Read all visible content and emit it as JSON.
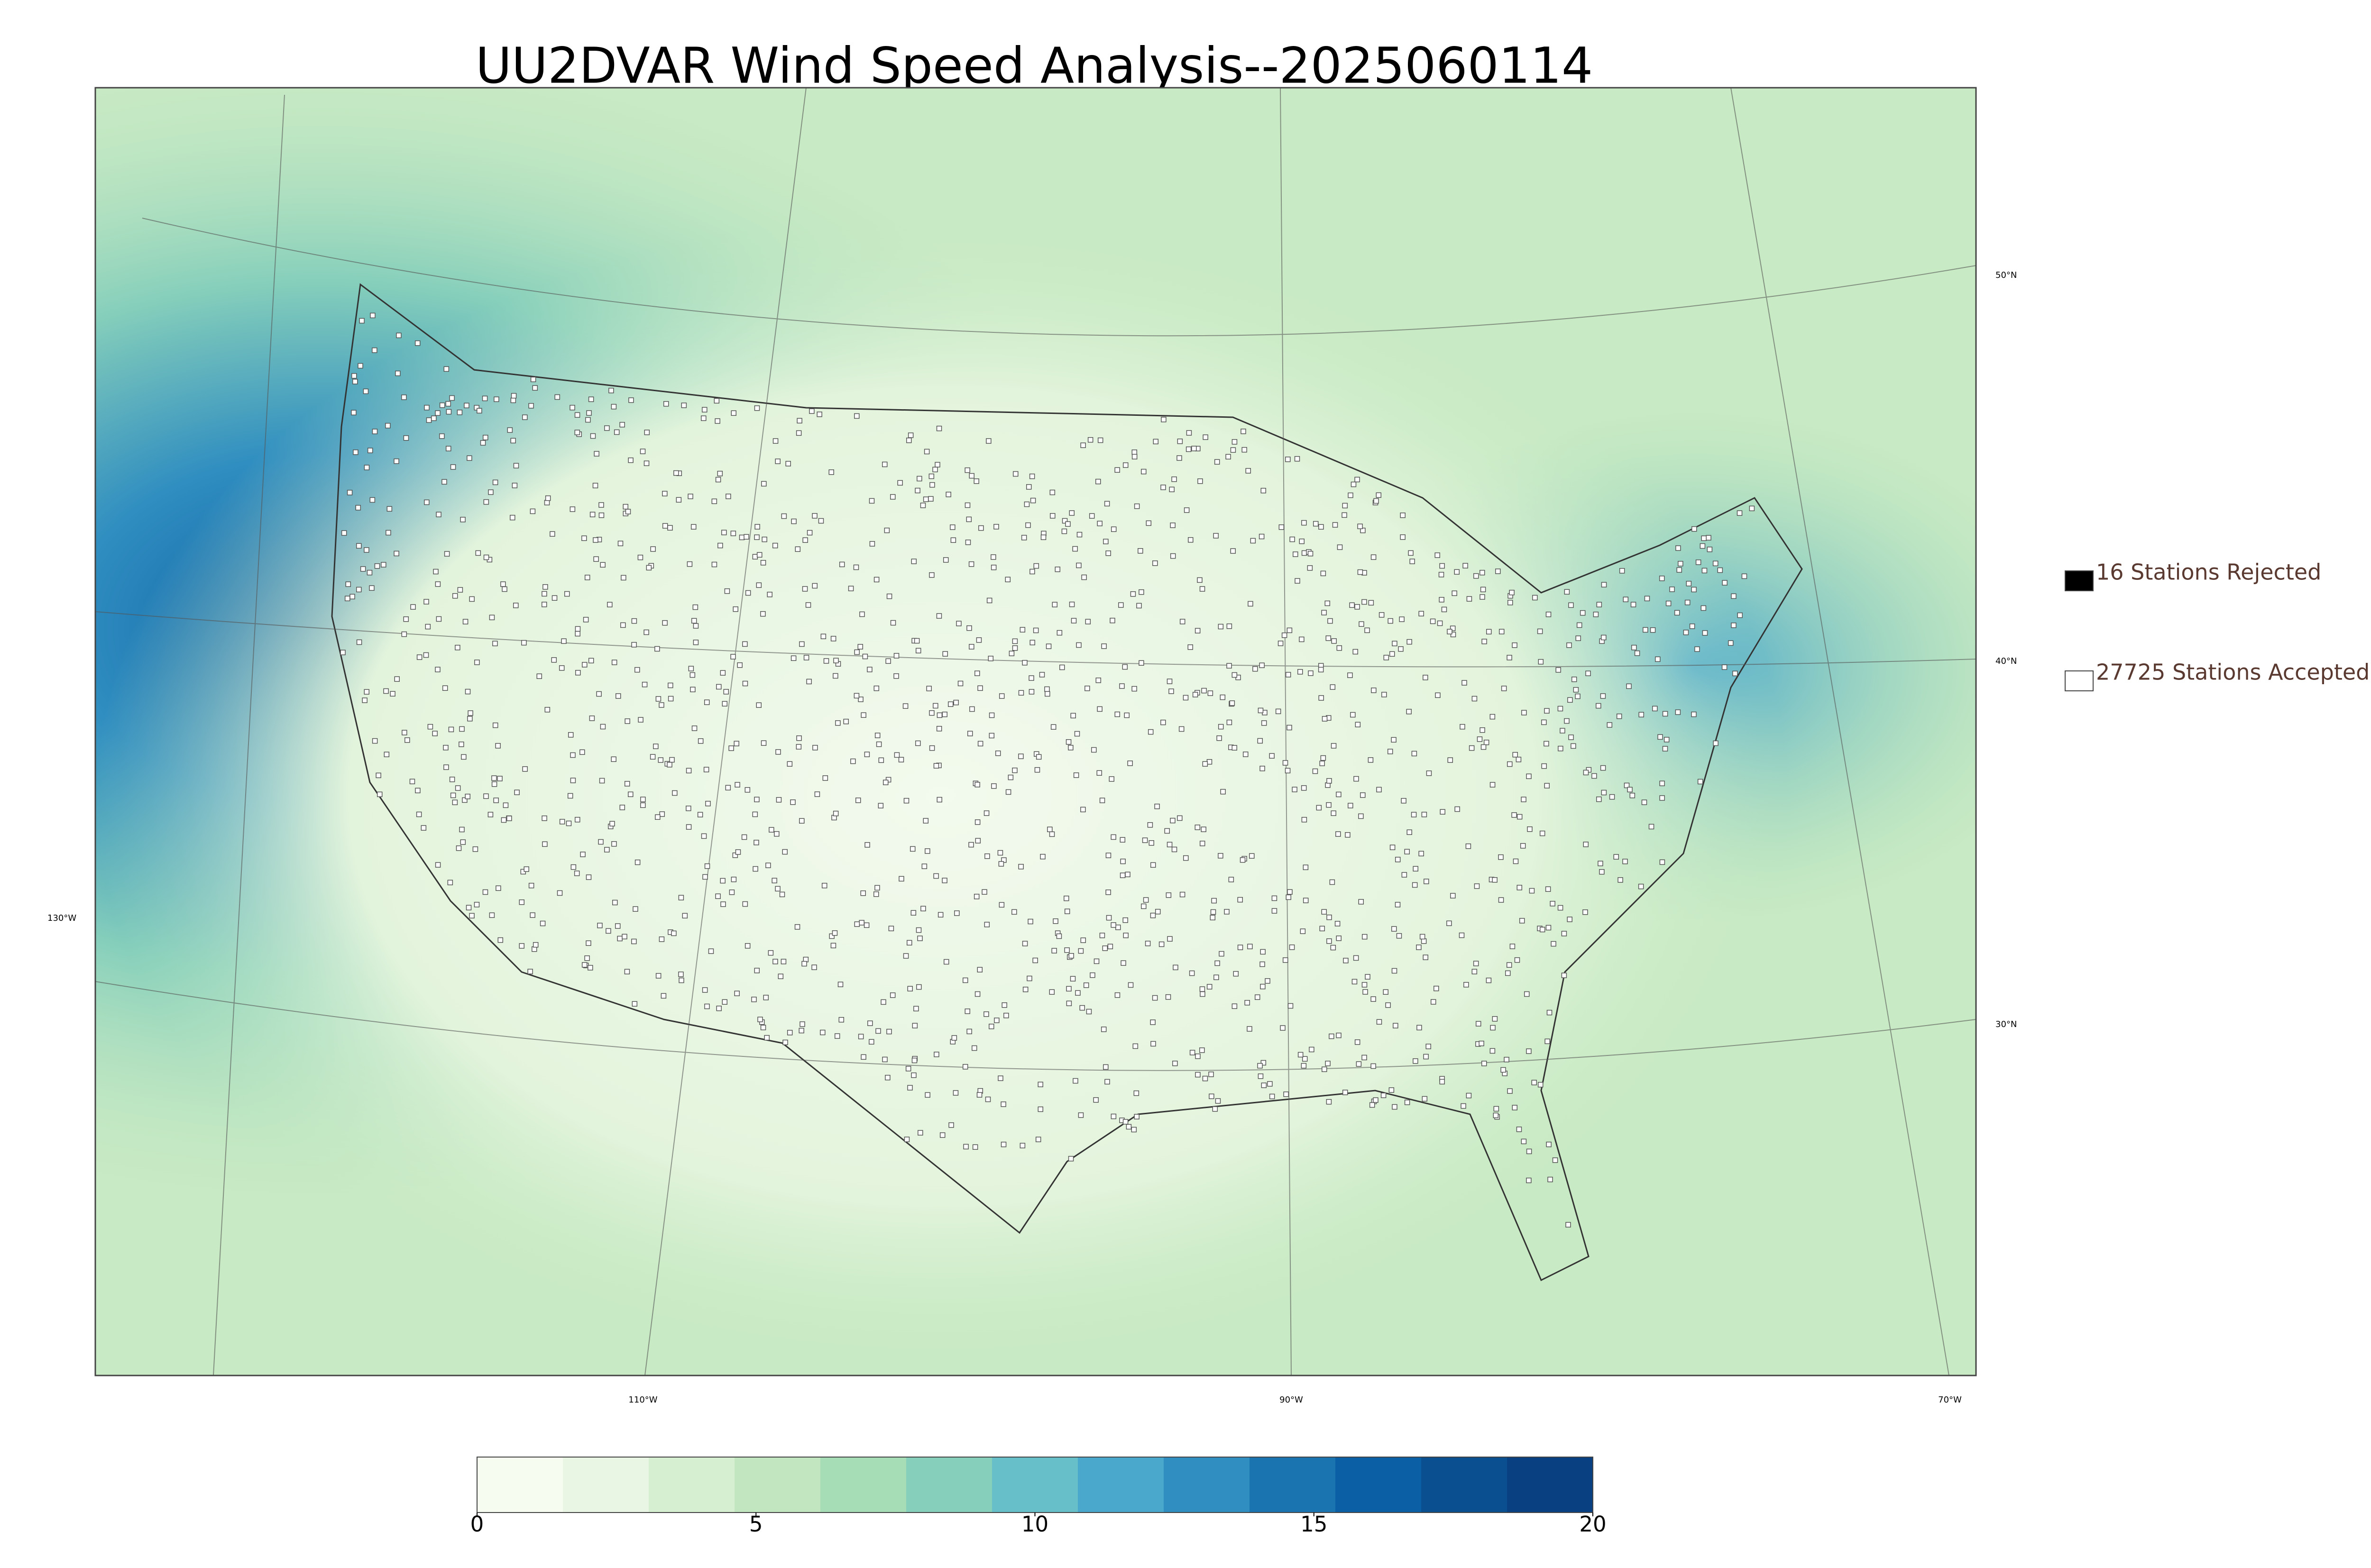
{
  "title": "UU2DVAR Wind Speed Analysis--2025060114",
  "map": {
    "lon_labels": [
      "110°W",
      "90°W",
      "70°W"
    ],
    "lat_labels": [
      "50°N",
      "40°N",
      "30°N"
    ],
    "west_label": "130°W"
  },
  "legend": [
    {
      "label": "16 Stations Rejected",
      "color": "#000000"
    },
    {
      "label": "27725 Stations Accepted",
      "color": "#ffffff"
    }
  ],
  "colorbar": {
    "lim": [
      0,
      20
    ],
    "ticks": [
      0,
      5,
      10,
      15,
      20
    ],
    "colors": [
      "#f7fcf0",
      "#e8f6e3",
      "#d7efd1",
      "#c2e7c0",
      "#a6dcb6",
      "#86cfbb",
      "#66bfc9",
      "#4aa8cc",
      "#308ec0",
      "#1a74b0",
      "#0b5fa5",
      "#0a4f8f",
      "#084081"
    ]
  }
}
